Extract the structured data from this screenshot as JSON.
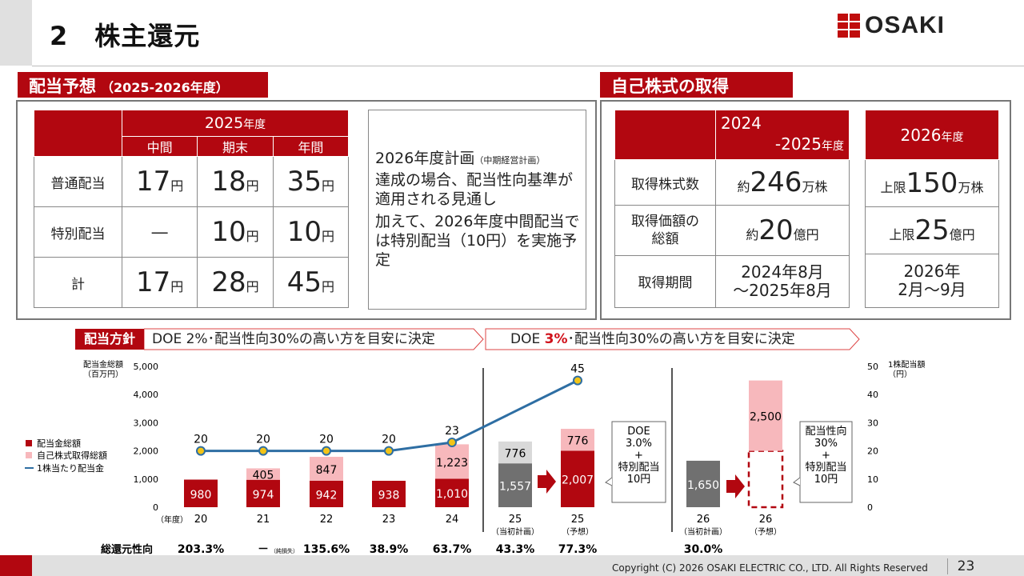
{
  "header": {
    "title": "2　株主還元",
    "logo_text": "OSAKI"
  },
  "dividend_section": {
    "label": "配当予想",
    "label_sub": "（2025-2026年度）",
    "year_head": "2025",
    "year_unit": "年度",
    "columns": [
      "中間",
      "期末",
      "年間"
    ],
    "rows": [
      {
        "label": "普通配当",
        "values": [
          "17",
          "18",
          "35"
        ]
      },
      {
        "label": "特別配当",
        "values": [
          "―",
          "10",
          "10"
        ]
      },
      {
        "label": "計",
        "values": [
          "17",
          "28",
          "45"
        ]
      }
    ],
    "yen": "円",
    "note_line1": "2026年度計画",
    "note_line1_small": "（中期経営計画）",
    "note_line2": "達成の場合、配当性向基準が適用される見通し",
    "note_line3": "加えて、2026年度中間配当では特別配当（10円）を実施予定"
  },
  "buyback_section": {
    "label": "自己株式の取得",
    "col1_line1": "2024",
    "col1_line2": "-2025",
    "col_unit": "年度",
    "col2_head": "2026",
    "rows": [
      {
        "label": "取得株式数",
        "c1_pre": "約",
        "c1_num": "246",
        "c1_unit": "万株",
        "c2_pre": "上限",
        "c2_num": "150",
        "c2_unit": "万株"
      },
      {
        "label1": "取得価額の",
        "label2": "総額",
        "c1_pre": "約",
        "c1_num": "20",
        "c1_unit": "億円",
        "c2_pre": "上限",
        "c2_num": "25",
        "c2_unit": "億円"
      },
      {
        "label": "取得期間",
        "c1_l1": "2024年8月",
        "c1_l2": "～2025年8月",
        "c2_l1": "2026年",
        "c2_l2": "2月～9月"
      }
    ]
  },
  "policy": {
    "tag": "配当方針",
    "old": "DOE 2%･配当性向30%の高い方を目安に決定",
    "new_pre": "DOE ",
    "new_red": "3%",
    "new_post": "･配当性向30%の高い方を目安に決定"
  },
  "chart_data": {
    "type": "bar",
    "categories": [
      "20",
      "21",
      "22",
      "23",
      "24",
      "25",
      "25",
      "26",
      "26"
    ],
    "category_sub": [
      "",
      "",
      "",
      "",
      "",
      "（当初計画）",
      "（予想）",
      "（当初計画）",
      "（予想）"
    ],
    "x_unit_label": "（年度）",
    "series": [
      {
        "name": "配当金総額",
        "values": [
          980,
          974,
          942,
          938,
          1010,
          1557,
          2007,
          1650,
          null
        ]
      },
      {
        "name": "自己株式取得総額",
        "values": [
          null,
          405,
          847,
          null,
          1223,
          776,
          776,
          null,
          2500
        ]
      },
      {
        "name": "1株当たり配当金",
        "values": [
          20,
          20,
          20,
          20,
          23,
          null,
          45,
          null,
          null
        ]
      }
    ],
    "left_axis_label": "配当金総額",
    "left_axis_unit": "（百万円）",
    "right_axis_label": "1株配当額",
    "right_axis_unit": "（円）",
    "ylim_left": [
      0,
      5000
    ],
    "ylim_right": [
      0,
      50
    ],
    "left_ticks": [
      "5,000",
      "4,000",
      "3,000",
      "2,000",
      "1,000",
      "0"
    ],
    "right_ticks": [
      "50",
      "40",
      "30",
      "20",
      "10",
      "0"
    ],
    "bar_labels_bottom": [
      "980",
      "974",
      "942",
      "938",
      "1,010",
      "1,557",
      "2,007",
      "1,650",
      ""
    ],
    "bar_labels_top": [
      "",
      "405",
      "847",
      "",
      "1,223",
      "776",
      "776",
      "",
      "2,500"
    ],
    "line_labels": [
      "20",
      "20",
      "20",
      "20",
      "23",
      "",
      "45",
      "",
      ""
    ],
    "callout_doe": [
      "DOE",
      "3.0%",
      "+",
      "特別配当",
      "10円"
    ],
    "callout_payout": [
      "配当性向",
      "30%",
      "+",
      "特別配当",
      "10円"
    ],
    "colors": {
      "dividend": "#b20710",
      "buyback": "#f7b8bc",
      "line": "#2e6ea3",
      "dot": "#f3c417",
      "plan_dark": "#707070",
      "plan_light": "#d9d9d9"
    },
    "total_return_label": "総還元性向",
    "total_return": [
      "203.3%",
      "－",
      "135.6%",
      "38.9%",
      "63.7%",
      "43.3%",
      "77.3%",
      "30.0%",
      ""
    ],
    "total_return_note": "（純損失）"
  },
  "footer": {
    "copyright": "Copyright (C) 2026 OSAKI ELECTRIC CO., LTD. All Rights Reserved",
    "page": "23"
  }
}
